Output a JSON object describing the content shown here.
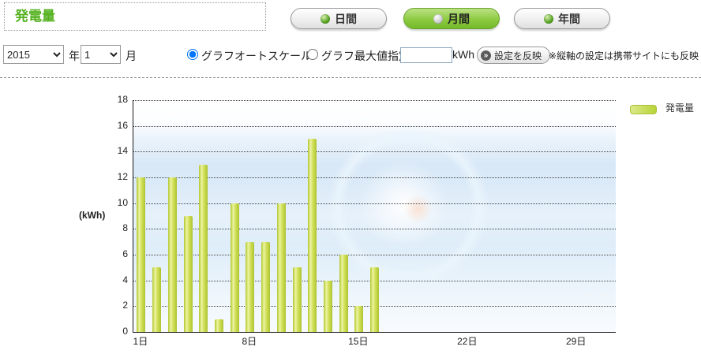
{
  "header": {
    "title": "発電量",
    "tabs": [
      {
        "label": "日間",
        "active": false
      },
      {
        "label": "月間",
        "active": true
      },
      {
        "label": "年間",
        "active": false
      }
    ]
  },
  "controls": {
    "year_value": "2015",
    "year_suffix": "年",
    "month_value": "1",
    "month_suffix": "月",
    "autoscale_label": "グラフオートスケール",
    "autoscale_selected": true,
    "max_label": "グラフ最大値指定",
    "max_selected": false,
    "max_input_value": "",
    "unit_label": "kWh",
    "apply_button_label": "設定を反映",
    "apply_button_icon": "»",
    "note": "※縦軸の設定は携帯サイトにも反映"
  },
  "chart_data": {
    "type": "bar",
    "title": "",
    "ylabel": "(kWh)",
    "series_name": "発電量",
    "legend_position": "top-right",
    "grid": "dotted",
    "ylim": [
      0,
      18
    ],
    "ytick_step": 2,
    "bar_color": "#c9dc4b",
    "bar_highlight": "#eef3ad",
    "x": [
      1,
      2,
      3,
      4,
      5,
      6,
      7,
      8,
      9,
      10,
      11,
      12,
      13,
      14,
      15,
      16,
      17,
      18,
      19,
      20,
      21,
      22,
      23,
      24,
      25,
      26,
      27,
      28,
      29,
      30,
      31
    ],
    "values": [
      12,
      5,
      12,
      9,
      13,
      1,
      10,
      7,
      7,
      10,
      5,
      15,
      4,
      6,
      2,
      5,
      0,
      0,
      0,
      0,
      0,
      0,
      0,
      0,
      0,
      0,
      0,
      0,
      0,
      0,
      0
    ],
    "x_ticks": [
      {
        "day": 1,
        "label": "1日"
      },
      {
        "day": 8,
        "label": "8日"
      },
      {
        "day": 15,
        "label": "15日"
      },
      {
        "day": 22,
        "label": "22日"
      },
      {
        "day": 29,
        "label": "29日"
      }
    ]
  }
}
